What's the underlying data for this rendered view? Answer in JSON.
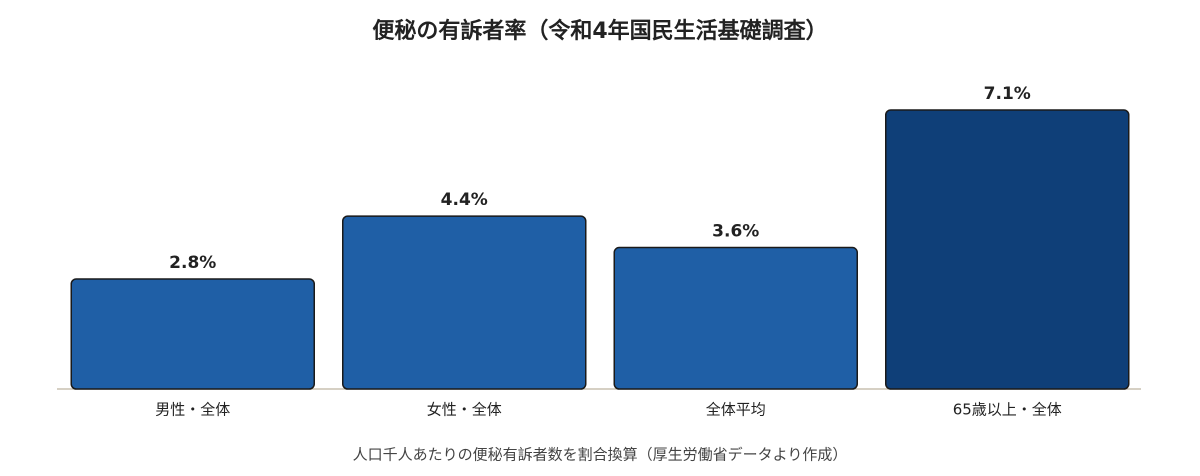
{
  "chart_data": {
    "type": "bar",
    "title": "便秘の有訴者率（令和4年国民生活基礎調査）",
    "note": "人口千人あたりの便秘有訴者数を割合換算（厚生労働省データより作成）",
    "categories": [
      "男性・全体",
      "女性・全体",
      "全体平均",
      "65歳以上・全体"
    ],
    "values": [
      2.8,
      4.4,
      3.6,
      7.1
    ],
    "value_labels": [
      "2.8%",
      "4.4%",
      "3.6%",
      "7.1%"
    ],
    "colors": [
      "#1f5fa6",
      "#1f5fa6",
      "#1f5fa6",
      "#0f3f78"
    ]
  }
}
